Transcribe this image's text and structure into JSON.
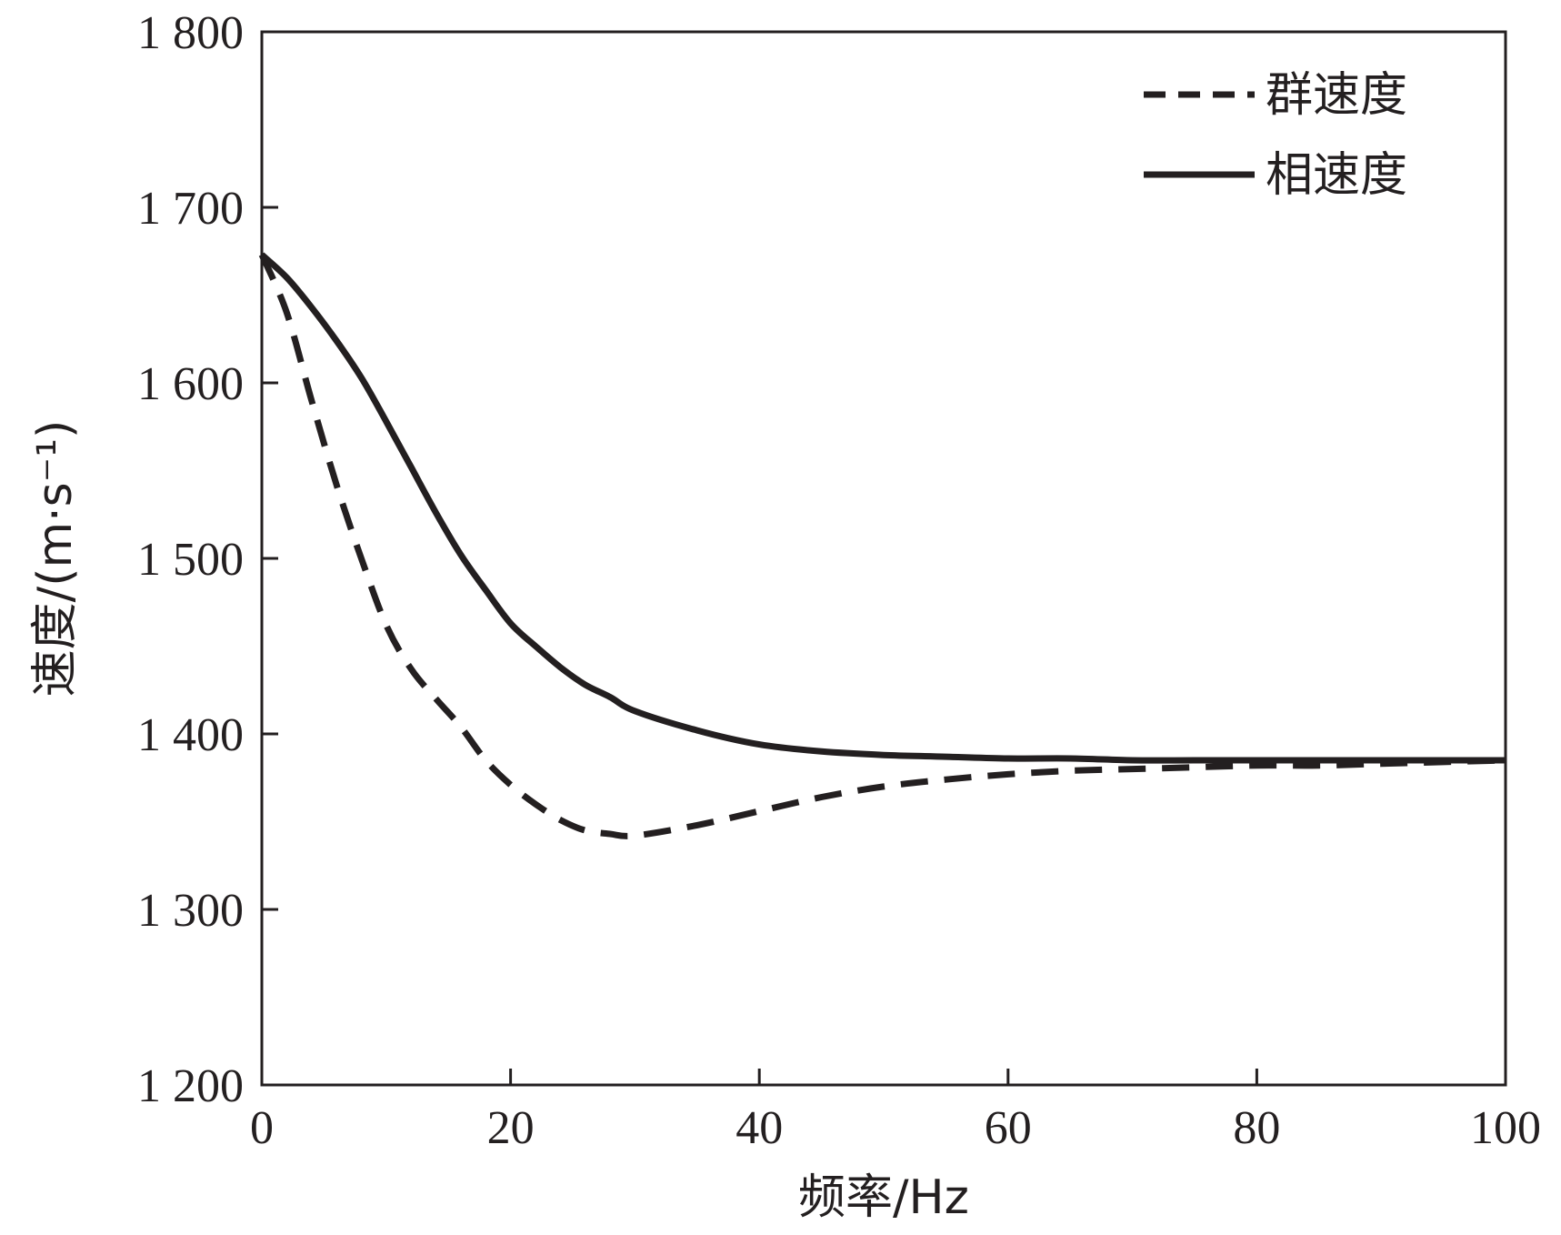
{
  "chart_data": {
    "type": "line",
    "xlabel": "频率/Hz",
    "ylabel": "速度/(m·s⁻¹)",
    "xlim": [
      0,
      100
    ],
    "ylim": [
      1200,
      1800
    ],
    "x_ticks": [
      0,
      20,
      40,
      60,
      80,
      100
    ],
    "y_ticks": [
      1200,
      1300,
      1400,
      1500,
      1600,
      1700,
      1800
    ],
    "x_tick_labels": [
      "0",
      "20",
      "40",
      "60",
      "80",
      "100"
    ],
    "y_tick_labels": [
      "1 200",
      "1 300",
      "1 400",
      "1 500",
      "1 600",
      "1 700",
      "1 800"
    ],
    "grid": false,
    "legend_position": "top-right",
    "series": [
      {
        "name": "群速度",
        "style": "dashed",
        "color": "#231f20",
        "x": [
          0,
          2,
          4,
          6,
          8,
          10,
          12,
          14,
          16,
          18,
          20,
          22,
          24,
          26,
          28,
          30,
          35,
          40,
          45,
          50,
          55,
          60,
          65,
          70,
          75,
          80,
          85,
          90,
          95,
          100
        ],
        "y": [
          1673,
          1640,
          1590,
          1542,
          1500,
          1462,
          1437,
          1420,
          1404,
          1385,
          1371,
          1360,
          1351,
          1345,
          1343,
          1342,
          1348,
          1356,
          1364,
          1370,
          1374,
          1377,
          1379,
          1380,
          1381,
          1382,
          1382,
          1383,
          1384,
          1385
        ]
      },
      {
        "name": "相速度",
        "style": "solid",
        "color": "#231f20",
        "x": [
          0,
          2,
          4,
          6,
          8,
          10,
          12,
          14,
          16,
          18,
          20,
          22,
          24,
          26,
          28,
          30,
          35,
          40,
          45,
          50,
          55,
          60,
          65,
          70,
          75,
          80,
          85,
          90,
          95,
          100
        ],
        "y": [
          1673,
          1660,
          1643,
          1624,
          1603,
          1578,
          1552,
          1526,
          1502,
          1482,
          1463,
          1450,
          1438,
          1428,
          1421,
          1413,
          1402,
          1394,
          1390,
          1388,
          1387,
          1386,
          1386,
          1385,
          1385,
          1385,
          1385,
          1385,
          1385,
          1385
        ]
      }
    ]
  }
}
